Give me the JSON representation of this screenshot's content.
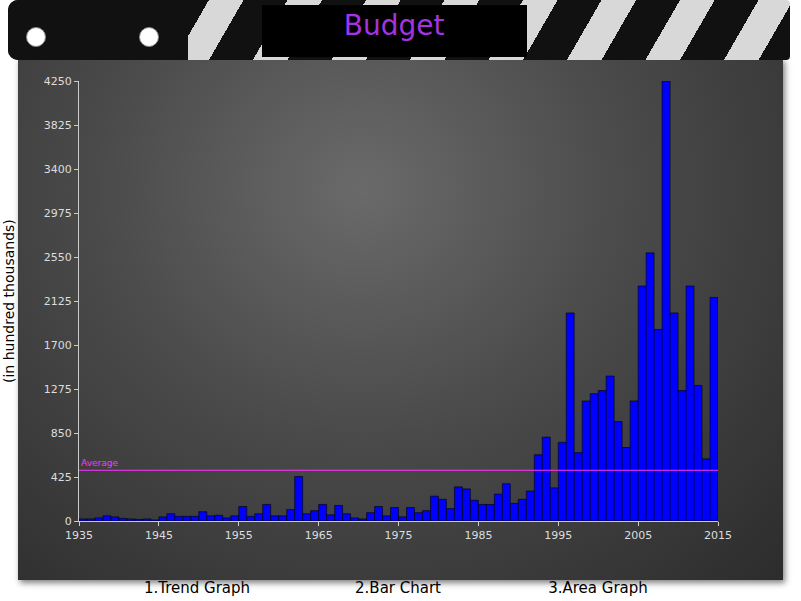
{
  "chart_data": {
    "type": "histogram",
    "title": "Budget",
    "ylabel": "(in hundred thousands)",
    "bins": [
      1935,
      1936,
      1937,
      1938,
      1939,
      1940,
      1941,
      1942,
      1943,
      1944,
      1945,
      1946,
      1947,
      1948,
      1949,
      1950,
      1951,
      1952,
      1953,
      1954,
      1955,
      1956,
      1957,
      1958,
      1959,
      1960,
      1961,
      1962,
      1963,
      1964,
      1965,
      1966,
      1967,
      1968,
      1969,
      1970,
      1971,
      1972,
      1973,
      1974,
      1975,
      1976,
      1977,
      1978,
      1979,
      1980,
      1981,
      1982,
      1983,
      1984,
      1985,
      1986,
      1987,
      1988,
      1989,
      1990,
      1991,
      1992,
      1993,
      1994,
      1995,
      1996,
      1997,
      1998,
      1999,
      2000,
      2001,
      2002,
      2003,
      2004,
      2005,
      2006,
      2007,
      2008,
      2009,
      2010,
      2011,
      2012,
      2013,
      2014,
      2015
    ],
    "values": [
      20,
      20,
      30,
      50,
      40,
      25,
      20,
      15,
      20,
      10,
      40,
      70,
      45,
      45,
      45,
      90,
      50,
      55,
      30,
      50,
      140,
      45,
      70,
      160,
      50,
      50,
      110,
      430,
      70,
      100,
      160,
      60,
      150,
      70,
      30,
      20,
      80,
      140,
      50,
      130,
      40,
      130,
      80,
      100,
      240,
      210,
      120,
      330,
      310,
      200,
      160,
      160,
      260,
      360,
      170,
      210,
      290,
      640,
      810,
      320,
      760,
      2010,
      660,
      1160,
      1230,
      1260,
      1400,
      960,
      710,
      1160,
      2270,
      2590,
      1850,
      4250,
      2010,
      1260,
      2270,
      1310,
      600,
      2160
    ],
    "color": "#0000ff",
    "average": {
      "label": "Average",
      "value": 490,
      "color": "#ff33ff"
    },
    "xlim": [
      1935,
      2015
    ],
    "xticks": [
      1935,
      1945,
      1955,
      1965,
      1975,
      1985,
      1995,
      2005,
      2015
    ],
    "ylim": [
      0,
      4250
    ],
    "yticks": [
      0,
      425,
      850,
      1275,
      1700,
      2125,
      2550,
      2975,
      3400,
      3825,
      4250
    ],
    "grid": false
  },
  "menu": [
    "1.Trend Graph",
    "2.Bar Chart",
    "3.Area Graph"
  ]
}
